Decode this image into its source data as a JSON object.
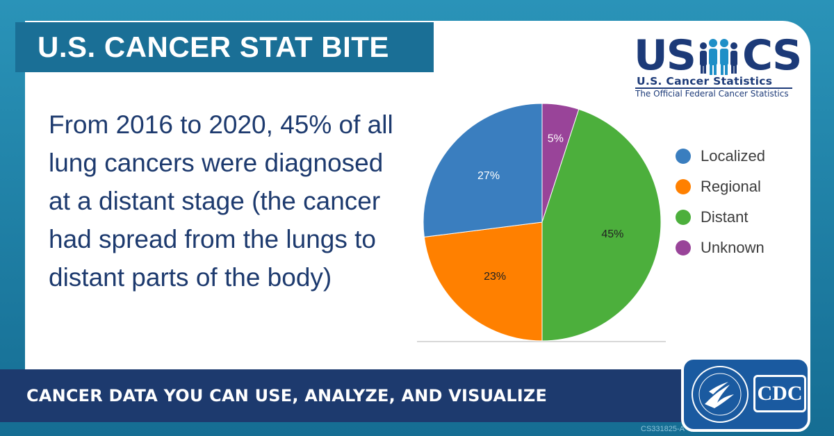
{
  "banner": {
    "title": "U.S. CANCER STAT BITE"
  },
  "logo": {
    "big_left": "US",
    "big_right": "CS",
    "subtitle": "U.S. Cancer Statistics",
    "tagline": "The Official Federal Cancer Statistics",
    "color": "#1c3a78"
  },
  "statement": "From 2016 to 2020, 45% of all lung cancers were diagnosed at a distant stage (the cancer had spread from the lungs to distant parts of the body)",
  "footer": {
    "tagline": "CANCER DATA YOU CAN USE, ANALYZE, AND VISUALIZE",
    "cdc_label": "CDC",
    "doc_id": "CS331825-A"
  },
  "chart_data": {
    "type": "pie",
    "title": "",
    "start": "top",
    "direction": "clockwise",
    "legend_position": "right",
    "slices": [
      {
        "label": "Unknown",
        "value": 5,
        "display": "5%",
        "color": "#994499",
        "text_color": "#ffffff"
      },
      {
        "label": "Distant",
        "value": 45,
        "display": "45%",
        "color": "#4caf3c",
        "text_color": "#222222"
      },
      {
        "label": "Regional",
        "value": 23,
        "display": "23%",
        "color": "#ff8000",
        "text_color": "#222222"
      },
      {
        "label": "Localized",
        "value": 27,
        "display": "27%",
        "color": "#3a7ebf",
        "text_color": "#ffffff"
      }
    ],
    "legend": [
      {
        "label": "Localized",
        "color": "#3a7ebf"
      },
      {
        "label": "Regional",
        "color": "#ff8000"
      },
      {
        "label": "Distant",
        "color": "#4caf3c"
      },
      {
        "label": "Unknown",
        "color": "#994499"
      }
    ]
  }
}
